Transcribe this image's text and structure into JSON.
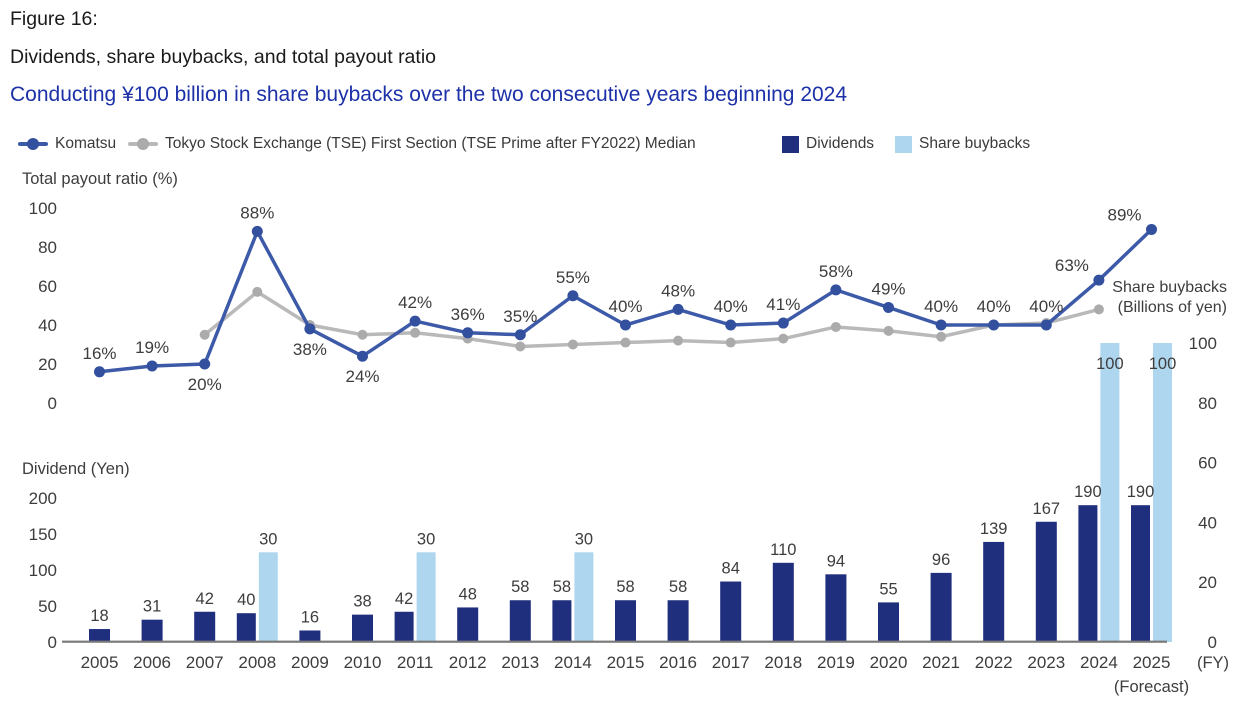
{
  "header": {
    "figure_label": "Figure 16:",
    "title": "Dividends, share buybacks, and total payout ratio",
    "subtitle": "Conducting ¥100 billion in share buybacks over the two consecutive years beginning 2024"
  },
  "legend": [
    {
      "label": "Komatsu",
      "marker": "line-dot"
    },
    {
      "label": "Tokyo Stock Exchange (TSE) First Section (TSE Prime after FY2022) Median",
      "marker": "line-dot"
    },
    {
      "label": "Dividends",
      "marker": "square"
    },
    {
      "label": "Share buybacks",
      "marker": "square"
    }
  ],
  "colors": {
    "komatsu_line": "#3D5AA9",
    "komatsu_dot": "#33509E",
    "tse_line": "#B9B9B9",
    "tse_dot": "#ABABAB",
    "dividend_bar": "#1F2E7D",
    "buyback_bar": "#AFD6EF",
    "subtitle_blue": "#1C31A8",
    "label_text": "#3D3D3D",
    "baseline": "#7A7A7A"
  },
  "chart_data": {
    "type": "combo: line (payout ratio) over bar (dividends + share buybacks)",
    "years": [
      "2005",
      "2006",
      "2007",
      "2008",
      "2009",
      "2010",
      "2011",
      "2012",
      "2013",
      "2014",
      "2015",
      "2016",
      "2017",
      "2018",
      "2019",
      "2020",
      "2021",
      "2022",
      "2023",
      "2024",
      "2025"
    ],
    "top_chart": {
      "axis_title": "Total payout  ratio (%)",
      "ylabel": "Total payout ratio (%)",
      "ylim": [
        0,
        100
      ],
      "y_ticks": [
        0,
        20,
        40,
        60,
        80,
        100
      ],
      "grid": false,
      "series": [
        {
          "name": "Komatsu",
          "type": "line",
          "values": [
            16,
            19,
            20,
            88,
            38,
            24,
            42,
            36,
            35,
            55,
            40,
            48,
            40,
            41,
            58,
            49,
            40,
            40,
            40,
            63,
            89
          ],
          "point_labels": [
            "16%",
            "19%",
            "20%",
            "88%",
            "38%",
            "24%",
            "42%",
            "36%",
            "35%",
            "55%",
            "40%",
            "48%",
            "40%",
            "41%",
            "58%",
            "49%",
            "40%",
            "40%",
            "40%",
            "63%",
            "89%"
          ]
        },
        {
          "name": "Tokyo Stock Exchange (TSE) First Section (TSE Prime after FY2022) Median",
          "type": "line",
          "values": [
            null,
            null,
            35,
            57,
            40,
            35,
            36,
            33,
            29,
            30,
            31,
            32,
            31,
            33,
            39,
            37,
            34,
            40,
            41,
            48,
            null
          ],
          "point_labels": []
        }
      ]
    },
    "bottom_chart": {
      "axis_title": "Dividend (Yen)",
      "ylabel_left": "Dividend (Yen)",
      "ylim_left": [
        0,
        200
      ],
      "y_ticks_left": [
        0,
        50,
        100,
        150,
        200
      ],
      "series": [
        {
          "name": "Dividends",
          "type": "bar",
          "axis": "left",
          "values": [
            18,
            31,
            42,
            40,
            16,
            38,
            42,
            48,
            58,
            58,
            58,
            58,
            84,
            110,
            94,
            55,
            96,
            139,
            167,
            190,
            190
          ]
        },
        {
          "name": "Share buybacks",
          "type": "bar",
          "axis": "right",
          "values": [
            null,
            null,
            null,
            30,
            null,
            null,
            30,
            null,
            null,
            30,
            null,
            null,
            null,
            null,
            null,
            null,
            null,
            null,
            null,
            100,
            100
          ]
        }
      ]
    },
    "right_axis": {
      "title_line1": "Share buybacks",
      "title_line2": "(Billions of yen)",
      "ylim": [
        0,
        100
      ],
      "ticks": [
        0,
        20,
        40,
        60,
        80,
        100
      ]
    },
    "x_axis": {
      "unit_label": "(FY)",
      "forecast_note": "(Forecast)",
      "forecast_year": "2025"
    }
  }
}
